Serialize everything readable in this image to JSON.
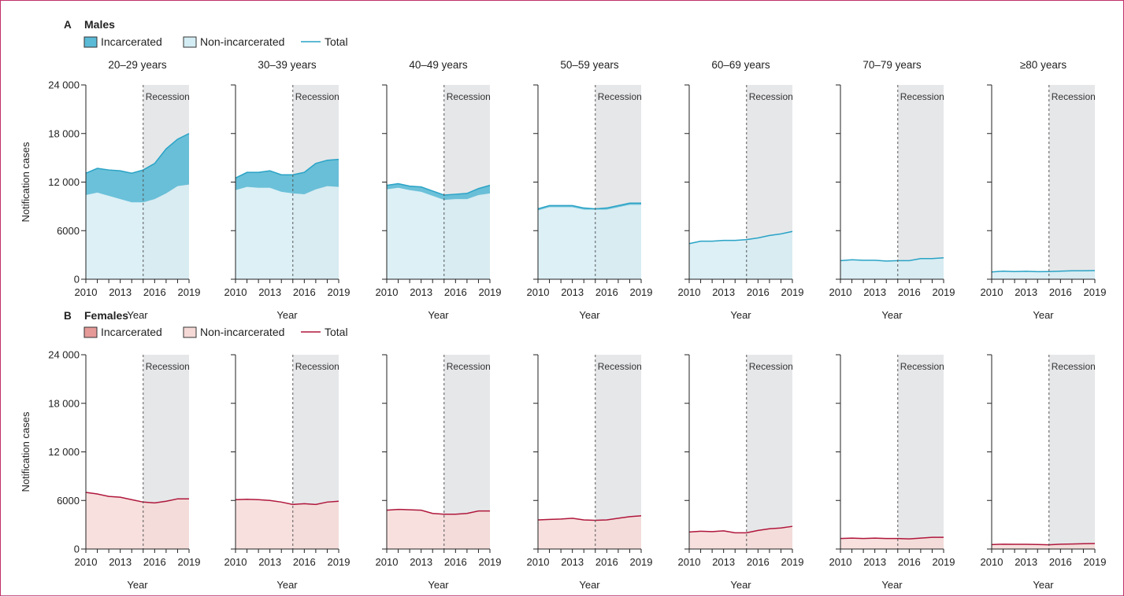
{
  "chart_data": [
    {
      "type": "area",
      "panel_letter": "A",
      "panel_title": "Males",
      "legend": [
        "Incarcerated",
        "Non-incarcerated",
        "Total"
      ],
      "ylabel": "Notification cases",
      "xlabel": "Year",
      "ylim": [
        0,
        24000
      ],
      "yticks": [
        "0",
        "6000",
        "12 000",
        "18 000",
        "24 000"
      ],
      "xticks": [
        "2010",
        "2013",
        "2016",
        "2019"
      ],
      "xlim": [
        2010,
        2019
      ],
      "shaded_region": {
        "label": "Recession",
        "start": 2015,
        "end": 2019
      },
      "colors": {
        "line": "#2aa3c6",
        "incarcerated": "#5bbad5",
        "non_incarcerated": "#d4edf4",
        "shade": "#e6e7e9"
      },
      "x": [
        2010,
        2011,
        2012,
        2013,
        2014,
        2015,
        2016,
        2017,
        2018,
        2019
      ],
      "subplots": [
        {
          "title": "20–29 years",
          "total": [
            13100,
            13700,
            13500,
            13400,
            13100,
            13500,
            14300,
            16100,
            17300,
            18000
          ],
          "non_incarcerated": [
            10400,
            10700,
            10300,
            9900,
            9500,
            9500,
            9900,
            10600,
            11500,
            11700
          ]
        },
        {
          "title": "30–39 years",
          "total": [
            12500,
            13200,
            13200,
            13400,
            12900,
            12900,
            13200,
            14300,
            14700,
            14800
          ],
          "non_incarcerated": [
            11000,
            11400,
            11300,
            11300,
            10800,
            10600,
            10500,
            11100,
            11500,
            11400
          ]
        },
        {
          "title": "40–49 years",
          "total": [
            11600,
            11800,
            11500,
            11400,
            10900,
            10400,
            10500,
            10600,
            11200,
            11600
          ],
          "non_incarcerated": [
            11100,
            11300,
            11000,
            10800,
            10300,
            9800,
            9900,
            9900,
            10400,
            10600
          ]
        },
        {
          "title": "50–59 years",
          "total": [
            8700,
            9100,
            9100,
            9100,
            8800,
            8700,
            8800,
            9100,
            9400,
            9400
          ],
          "non_incarcerated": [
            8500,
            8900,
            8900,
            8900,
            8600,
            8600,
            8600,
            8900,
            9200,
            9200
          ]
        },
        {
          "title": "60–69 years",
          "total": [
            4400,
            4700,
            4700,
            4800,
            4800,
            4900,
            5100,
            5400,
            5600,
            5900
          ],
          "non_incarcerated": [
            4350,
            4650,
            4650,
            4750,
            4750,
            4850,
            5050,
            5350,
            5550,
            5850
          ]
        },
        {
          "title": "70–79 years",
          "total": [
            2300,
            2400,
            2350,
            2350,
            2250,
            2300,
            2300,
            2550,
            2550,
            2650
          ],
          "non_incarcerated": [
            2270,
            2370,
            2320,
            2320,
            2220,
            2270,
            2270,
            2520,
            2520,
            2620
          ]
        },
        {
          "title": "≥80 years",
          "total": [
            900,
            1000,
            950,
            980,
            930,
            950,
            1000,
            1050,
            1050,
            1070
          ],
          "non_incarcerated": [
            890,
            990,
            940,
            970,
            920,
            940,
            990,
            1040,
            1040,
            1060
          ]
        }
      ]
    },
    {
      "type": "area",
      "panel_letter": "B",
      "panel_title": "Females",
      "legend": [
        "Incarcerated",
        "Non-incarcerated",
        "Total"
      ],
      "ylabel": "Notification cases",
      "xlabel": "Year",
      "ylim": [
        0,
        24000
      ],
      "yticks": [
        "0",
        "6000",
        "12 000",
        "18 000",
        "24 000"
      ],
      "xticks": [
        "2010",
        "2013",
        "2016",
        "2019"
      ],
      "xlim": [
        2010,
        2019
      ],
      "shaded_region": {
        "label": "Recession",
        "start": 2015,
        "end": 2019
      },
      "colors": {
        "line": "#b0173c",
        "incarcerated": "#e59a98",
        "non_incarcerated": "#f5d9d7",
        "shade": "#e6e7e9"
      },
      "x": [
        2010,
        2011,
        2012,
        2013,
        2014,
        2015,
        2016,
        2017,
        2018,
        2019
      ],
      "subplots": [
        {
          "title": "",
          "total": [
            7000,
            6800,
            6500,
            6400,
            6100,
            5800,
            5700,
            5900,
            6200,
            6200
          ],
          "non_incarcerated": [
            6950,
            6750,
            6450,
            6350,
            6050,
            5750,
            5650,
            5850,
            6150,
            6150
          ]
        },
        {
          "title": "",
          "total": [
            6100,
            6150,
            6100,
            6000,
            5800,
            5500,
            5600,
            5500,
            5800,
            5900
          ],
          "non_incarcerated": [
            6050,
            6100,
            6050,
            5950,
            5750,
            5450,
            5550,
            5450,
            5750,
            5850
          ]
        },
        {
          "title": "",
          "total": [
            4800,
            4900,
            4850,
            4800,
            4400,
            4300,
            4300,
            4400,
            4700,
            4700
          ],
          "non_incarcerated": [
            4760,
            4860,
            4810,
            4760,
            4360,
            4260,
            4260,
            4360,
            4660,
            4660
          ]
        },
        {
          "title": "",
          "total": [
            3600,
            3650,
            3700,
            3800,
            3600,
            3550,
            3600,
            3800,
            4000,
            4100
          ],
          "non_incarcerated": [
            3570,
            3620,
            3670,
            3770,
            3570,
            3520,
            3570,
            3770,
            3970,
            4070
          ]
        },
        {
          "title": "",
          "total": [
            2100,
            2200,
            2150,
            2250,
            2000,
            2000,
            2300,
            2500,
            2600,
            2800
          ],
          "non_incarcerated": [
            2080,
            2180,
            2130,
            2230,
            1980,
            1980,
            2280,
            2480,
            2580,
            2780
          ]
        },
        {
          "title": "",
          "total": [
            1300,
            1350,
            1300,
            1350,
            1300,
            1300,
            1250,
            1350,
            1450,
            1450
          ],
          "non_incarcerated": [
            1285,
            1335,
            1285,
            1335,
            1285,
            1285,
            1235,
            1335,
            1435,
            1435
          ]
        },
        {
          "title": "",
          "total": [
            550,
            600,
            580,
            580,
            560,
            520,
            600,
            620,
            650,
            680
          ],
          "non_incarcerated": [
            545,
            595,
            575,
            575,
            555,
            515,
            595,
            615,
            645,
            675
          ]
        }
      ]
    }
  ]
}
